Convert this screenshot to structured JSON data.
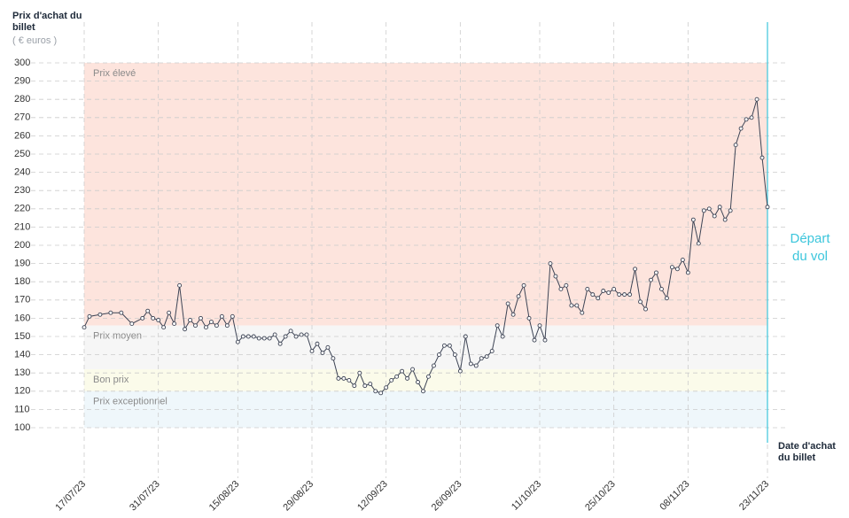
{
  "chart_data": {
    "type": "line",
    "y_label": "Prix d'achat du billet",
    "y_unit": "( € euros )",
    "x_label": "Date d'achat du billet",
    "annotation": "Départ du vol",
    "departure_date": "23/11/23",
    "ylim": [
      100,
      300
    ],
    "yticks": [
      100,
      110,
      120,
      130,
      140,
      150,
      160,
      170,
      180,
      190,
      200,
      210,
      220,
      230,
      240,
      250,
      260,
      270,
      280,
      290,
      300
    ],
    "xlim": [
      "17/07/23",
      "23/11/23"
    ],
    "xticks": [
      "17/07/23",
      "31/07/23",
      "15/08/23",
      "29/08/23",
      "12/09/23",
      "26/09/23",
      "11/10/23",
      "25/10/23",
      "08/11/23",
      "23/11/23"
    ],
    "grid": true,
    "bands": [
      {
        "label": "Prix élevé",
        "from": 156,
        "to": 300,
        "color": "#fde4dd"
      },
      {
        "label": "Prix moyen",
        "from": 132,
        "to": 156,
        "color": "#f6f6f6"
      },
      {
        "label": "Bon prix",
        "from": 120,
        "to": 132,
        "color": "#fbfbea"
      },
      {
        "label": "Prix exceptionnel",
        "from": 100,
        "to": 120,
        "color": "#eff7fb"
      }
    ],
    "x": [
      "17/07/23",
      "18/07/23",
      "20/07/23",
      "22/07/23",
      "24/07/23",
      "26/07/23",
      "28/07/23",
      "29/07/23",
      "30/07/23",
      "31/07/23",
      "01/08/23",
      "02/08/23",
      "03/08/23",
      "04/08/23",
      "05/08/23",
      "06/08/23",
      "07/08/23",
      "08/08/23",
      "09/08/23",
      "10/08/23",
      "11/08/23",
      "12/08/23",
      "13/08/23",
      "14/08/23",
      "15/08/23",
      "16/08/23",
      "17/08/23",
      "18/08/23",
      "19/08/23",
      "20/08/23",
      "21/08/23",
      "22/08/23",
      "23/08/23",
      "24/08/23",
      "25/08/23",
      "26/08/23",
      "27/08/23",
      "28/08/23",
      "29/08/23",
      "30/08/23",
      "31/08/23",
      "01/09/23",
      "02/09/23",
      "03/09/23",
      "04/09/23",
      "05/09/23",
      "06/09/23",
      "07/09/23",
      "08/09/23",
      "09/09/23",
      "10/09/23",
      "11/09/23",
      "12/09/23",
      "13/09/23",
      "14/09/23",
      "15/09/23",
      "16/09/23",
      "17/09/23",
      "18/09/23",
      "19/09/23",
      "20/09/23",
      "21/09/23",
      "22/09/23",
      "23/09/23",
      "24/09/23",
      "25/09/23",
      "26/09/23",
      "27/09/23",
      "28/09/23",
      "29/09/23",
      "30/09/23",
      "01/10/23",
      "02/10/23",
      "03/10/23",
      "04/10/23",
      "05/10/23",
      "06/10/23",
      "07/10/23",
      "08/10/23",
      "09/10/23",
      "10/10/23",
      "11/10/23",
      "12/10/23",
      "13/10/23",
      "14/10/23",
      "15/10/23",
      "16/10/23",
      "17/10/23",
      "18/10/23",
      "19/10/23",
      "20/10/23",
      "21/10/23",
      "22/10/23",
      "23/10/23",
      "24/10/23",
      "25/10/23",
      "26/10/23",
      "27/10/23",
      "28/10/23",
      "29/10/23",
      "30/10/23",
      "31/10/23",
      "01/11/23",
      "02/11/23",
      "03/11/23",
      "04/11/23",
      "05/11/23",
      "06/11/23",
      "07/11/23",
      "08/11/23",
      "09/11/23",
      "10/11/23",
      "11/11/23",
      "12/11/23",
      "13/11/23",
      "14/11/23",
      "15/11/23",
      "16/11/23",
      "17/11/23",
      "18/11/23",
      "19/11/23",
      "20/11/23",
      "21/11/23",
      "22/11/23",
      "23/11/23"
    ],
    "series": [
      {
        "color": "#3d4455",
        "values": [
          155,
          161,
          162,
          163,
          163,
          157,
          160,
          164,
          160,
          159,
          155,
          163,
          157,
          178,
          154,
          159,
          156,
          160,
          155,
          158,
          156,
          161,
          156,
          161,
          147,
          150,
          150,
          150,
          149,
          149,
          149,
          151,
          146,
          150,
          153,
          150,
          151,
          151,
          142,
          146,
          141,
          144,
          138,
          127,
          127,
          126,
          123,
          130,
          123,
          124,
          120,
          119,
          122,
          126,
          128,
          131,
          127,
          132,
          125,
          120,
          128,
          134,
          140,
          145,
          145,
          140,
          131,
          150,
          135,
          134,
          138,
          139,
          142,
          156,
          150,
          168,
          162,
          172,
          178,
          160,
          148,
          156,
          148,
          190,
          183,
          176,
          178,
          167,
          167,
          163,
          176,
          173,
          171,
          175,
          174,
          176,
          173,
          173,
          173,
          187,
          169,
          165,
          181,
          185,
          176,
          171,
          188,
          187,
          192,
          185,
          214,
          201,
          219,
          220,
          216,
          221,
          214,
          219,
          255,
          264,
          269,
          270,
          280,
          248,
          221
        ]
      }
    ]
  }
}
